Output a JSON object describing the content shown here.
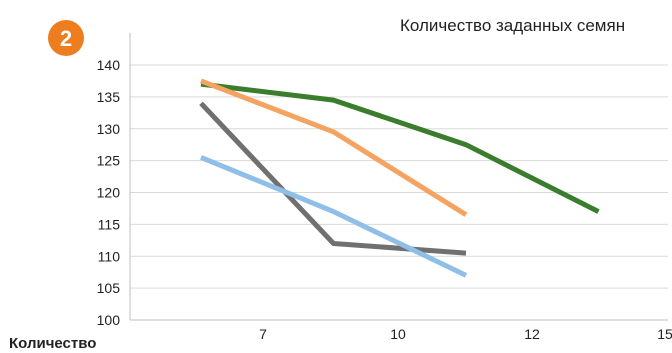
{
  "badge": {
    "label": "2",
    "color": "#ee7d1f"
  },
  "chart_data": {
    "type": "line",
    "title": "Количество заданных семян",
    "xlabel": "Количество",
    "ylabel": "",
    "ylim": [
      100,
      140
    ],
    "yticks": [
      100,
      105,
      110,
      115,
      120,
      125,
      130,
      135,
      140
    ],
    "xticks": [
      "7",
      "10",
      "12",
      "15"
    ],
    "grid": true,
    "series": [
      {
        "color": "#3a7d2c",
        "x": [
          0,
          1,
          2,
          3
        ],
        "values": [
          137,
          134.5,
          127.5,
          117
        ]
      },
      {
        "color": "#f4a460",
        "x": [
          0,
          1,
          2
        ],
        "values": [
          137.5,
          129.5,
          116.5
        ]
      },
      {
        "color": "#707070",
        "x": [
          0,
          1,
          2
        ],
        "values": [
          134,
          112,
          110.5
        ]
      },
      {
        "color": "#8fbfe8",
        "x": [
          0,
          1,
          2
        ],
        "values": [
          125.5,
          117,
          107
        ]
      }
    ]
  }
}
